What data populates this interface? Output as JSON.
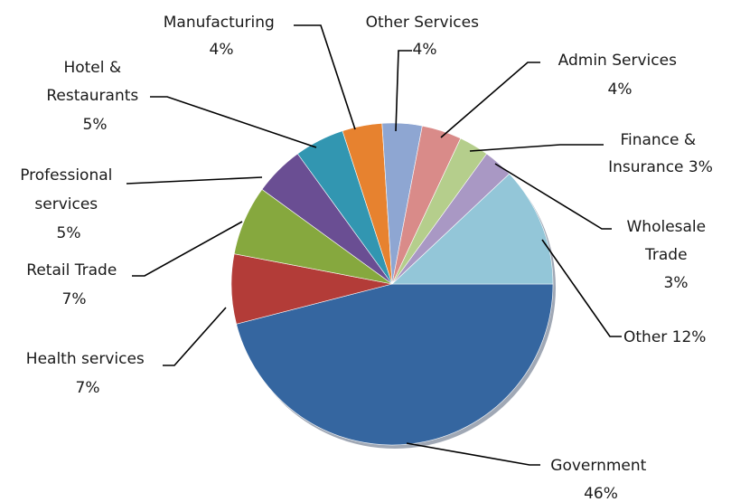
{
  "chart_data": {
    "type": "pie",
    "title": "",
    "slices": [
      {
        "label": "Government",
        "value": 46,
        "value_label": "46%",
        "color": "#3566a0"
      },
      {
        "label": "Health services",
        "value": 7,
        "value_label": "7%",
        "color": "#b33c38"
      },
      {
        "label": "Retail Trade",
        "value": 7,
        "value_label": "7%",
        "color": "#86a83e"
      },
      {
        "label": "Professional services",
        "value": 5,
        "value_label": "5%",
        "color": "#6a4e93"
      },
      {
        "label": "Hotel & Restaurants",
        "value": 5,
        "value_label": "5%",
        "color": "#3296b1"
      },
      {
        "label": "Manufacturing",
        "value": 4,
        "value_label": "4%",
        "color": "#e7822f"
      },
      {
        "label": "Other Services",
        "value": 4,
        "value_label": "4%",
        "color": "#8ea6d2"
      },
      {
        "label": "Admin Services",
        "value": 4,
        "value_label": "4%",
        "color": "#d98b89"
      },
      {
        "label": "Finance & Insurance",
        "value": 3,
        "value_label": "3%",
        "color": "#b5ce8c"
      },
      {
        "label": "Wholesale Trade",
        "value": 3,
        "value_label": "3%",
        "color": "#a998c4"
      },
      {
        "label": "Other",
        "value": 12,
        "value_label": "12%",
        "color": "#93c6d8"
      }
    ]
  },
  "labels": {
    "manufacturing": {
      "line1": "Manufacturing",
      "line2": "4%"
    },
    "other_services": {
      "line1": "Other Services",
      "line2": "4%"
    },
    "admin_services": {
      "line1": "Admin Services",
      "line2": "4%"
    },
    "finance": {
      "line1": "Finance &",
      "line2": "Insurance 3%"
    },
    "wholesale": {
      "line1": "Wholesale",
      "line2": "Trade",
      "line3": "3%"
    },
    "other": {
      "line1": "Other 12%"
    },
    "government": {
      "line1": "Government",
      "line2": "46%"
    },
    "health": {
      "line1": "Health services",
      "line2": "7%"
    },
    "retail": {
      "line1": "Retail Trade",
      "line2": "7%"
    },
    "professional": {
      "line1": "Professional",
      "line2": "services",
      "line3": "5%"
    },
    "hotel": {
      "line1": "Hotel &",
      "line2": "Restaurants",
      "line3": "5%"
    }
  }
}
